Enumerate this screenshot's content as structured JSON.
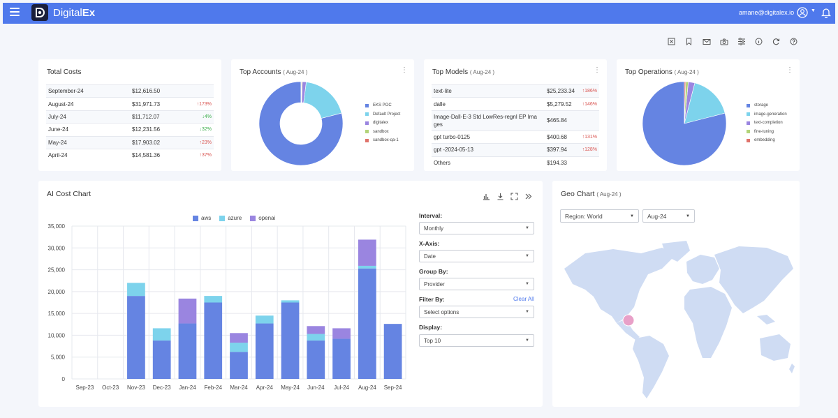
{
  "header": {
    "brand_a": "Digital",
    "brand_b": "Ex",
    "user_email": "amane@digitalex.io"
  },
  "toolbar_icons": [
    "excel-icon",
    "bookmark-icon",
    "mail-icon",
    "camera-icon",
    "sliders-icon",
    "info-icon",
    "refresh-icon",
    "help-icon"
  ],
  "total_costs": {
    "title": "Total Costs",
    "rows": [
      {
        "month": "September-24",
        "amount": "$12,616.50",
        "change": "",
        "dir": ""
      },
      {
        "month": "August-24",
        "amount": "$31,971.73",
        "change": "↑173%",
        "dir": "up"
      },
      {
        "month": "July-24",
        "amount": "$11,712.07",
        "change": "↓4%",
        "dir": "down"
      },
      {
        "month": "June-24",
        "amount": "$12,231.56",
        "change": "↓32%",
        "dir": "down"
      },
      {
        "month": "May-24",
        "amount": "$17,903.02",
        "change": "↑23%",
        "dir": "up"
      },
      {
        "month": "April-24",
        "amount": "$14,581.36",
        "change": "↑37%",
        "dir": "up"
      }
    ]
  },
  "top_accounts": {
    "title": "Top Accounts",
    "period": "( Aug-24 )",
    "legend": [
      "EKS POC",
      "Default Project",
      "digitalex",
      "sandbox",
      "sandbox-qa-1"
    ]
  },
  "top_models": {
    "title": "Top Models",
    "period": "( Aug-24 )",
    "rows": [
      {
        "name": "text-lite",
        "amount": "$25,233.34",
        "change": "↑186%"
      },
      {
        "name": "dalle",
        "amount": "$5,279.52",
        "change": "↑146%"
      },
      {
        "name": "Image-Dall-E-3 Std LowRes-regnl EP Ima",
        "name2": "ges",
        "amount": "$465.84",
        "change": ""
      },
      {
        "name": "gpt turbo-0125",
        "amount": "$400.68",
        "change": "↑131%"
      },
      {
        "name": "gpt -2024-05-13",
        "amount": "$397.94",
        "change": "↑128%"
      },
      {
        "name": "Others",
        "amount": "$194.33",
        "change": ""
      }
    ]
  },
  "top_operations": {
    "title": "Top Operations",
    "period": "( Aug-24 )",
    "legend": [
      "storage",
      "image-generation",
      "text-completion",
      "fine-tuning",
      "embedding"
    ]
  },
  "colors": {
    "aws": "#6584e2",
    "azure": "#7dd3ec",
    "openai": "#9a85e0",
    "fine_tuning": "#b3d47a",
    "embedding": "#e0736b",
    "header": "#4f79ec"
  },
  "ai_cost_chart": {
    "title": "AI Cost Chart",
    "icons": [
      "bar-chart-icon",
      "download-icon",
      "fullscreen-icon",
      "collapse-icon"
    ]
  },
  "chart_data": [
    {
      "type": "bar",
      "stacked": true,
      "categories": [
        "Sep-23",
        "Oct-23",
        "Nov-23",
        "Dec-23",
        "Jan-24",
        "Feb-24",
        "Mar-24",
        "Apr-24",
        "May-24",
        "Jun-24",
        "Jul-24",
        "Aug-24",
        "Sep-24"
      ],
      "series": [
        {
          "name": "aws",
          "values": [
            0,
            0,
            19000,
            8800,
            12700,
            17500,
            6200,
            12700,
            17500,
            8800,
            9200,
            25300,
            12600
          ]
        },
        {
          "name": "azure",
          "values": [
            0,
            0,
            3000,
            2800,
            0,
            1500,
            2100,
            1800,
            500,
            1500,
            0,
            600,
            0
          ]
        },
        {
          "name": "openai",
          "values": [
            0,
            0,
            0,
            0,
            5700,
            0,
            2200,
            0,
            0,
            1800,
            2400,
            6000,
            0
          ]
        }
      ],
      "ylim": [
        0,
        35000
      ],
      "yticks": [
        "0",
        "5,000",
        "10,000",
        "15,000",
        "20,000",
        "25,000",
        "30,000",
        "35,000"
      ],
      "grid": true,
      "legend": "top"
    },
    {
      "type": "pie",
      "variant": "donut",
      "labels": [
        "EKS POC",
        "Default Project",
        "digitalex",
        "sandbox",
        "sandbox-qa-1"
      ],
      "values": [
        79,
        19,
        1.5,
        0.3,
        0.2
      ]
    },
    {
      "type": "pie",
      "labels": [
        "storage",
        "image-generation",
        "text-completion",
        "fine-tuning",
        "embedding"
      ],
      "values": [
        79,
        17,
        2.5,
        1,
        0.5
      ]
    }
  ],
  "controls": {
    "interval_label": "Interval:",
    "interval_value": "Monthly",
    "xaxis_label": "X-Axis:",
    "xaxis_value": "Date",
    "groupby_label": "Group By:",
    "groupby_value": "Provider",
    "filter_label": "Filter By:",
    "clear_all": "Clear All",
    "filter_value": "Select options",
    "display_label": "Display:",
    "display_value": "Top 10"
  },
  "geo_chart": {
    "title": "Geo Chart",
    "period": "( Aug-24 )",
    "region_value": "Region: World",
    "month_value": "Aug-24"
  }
}
